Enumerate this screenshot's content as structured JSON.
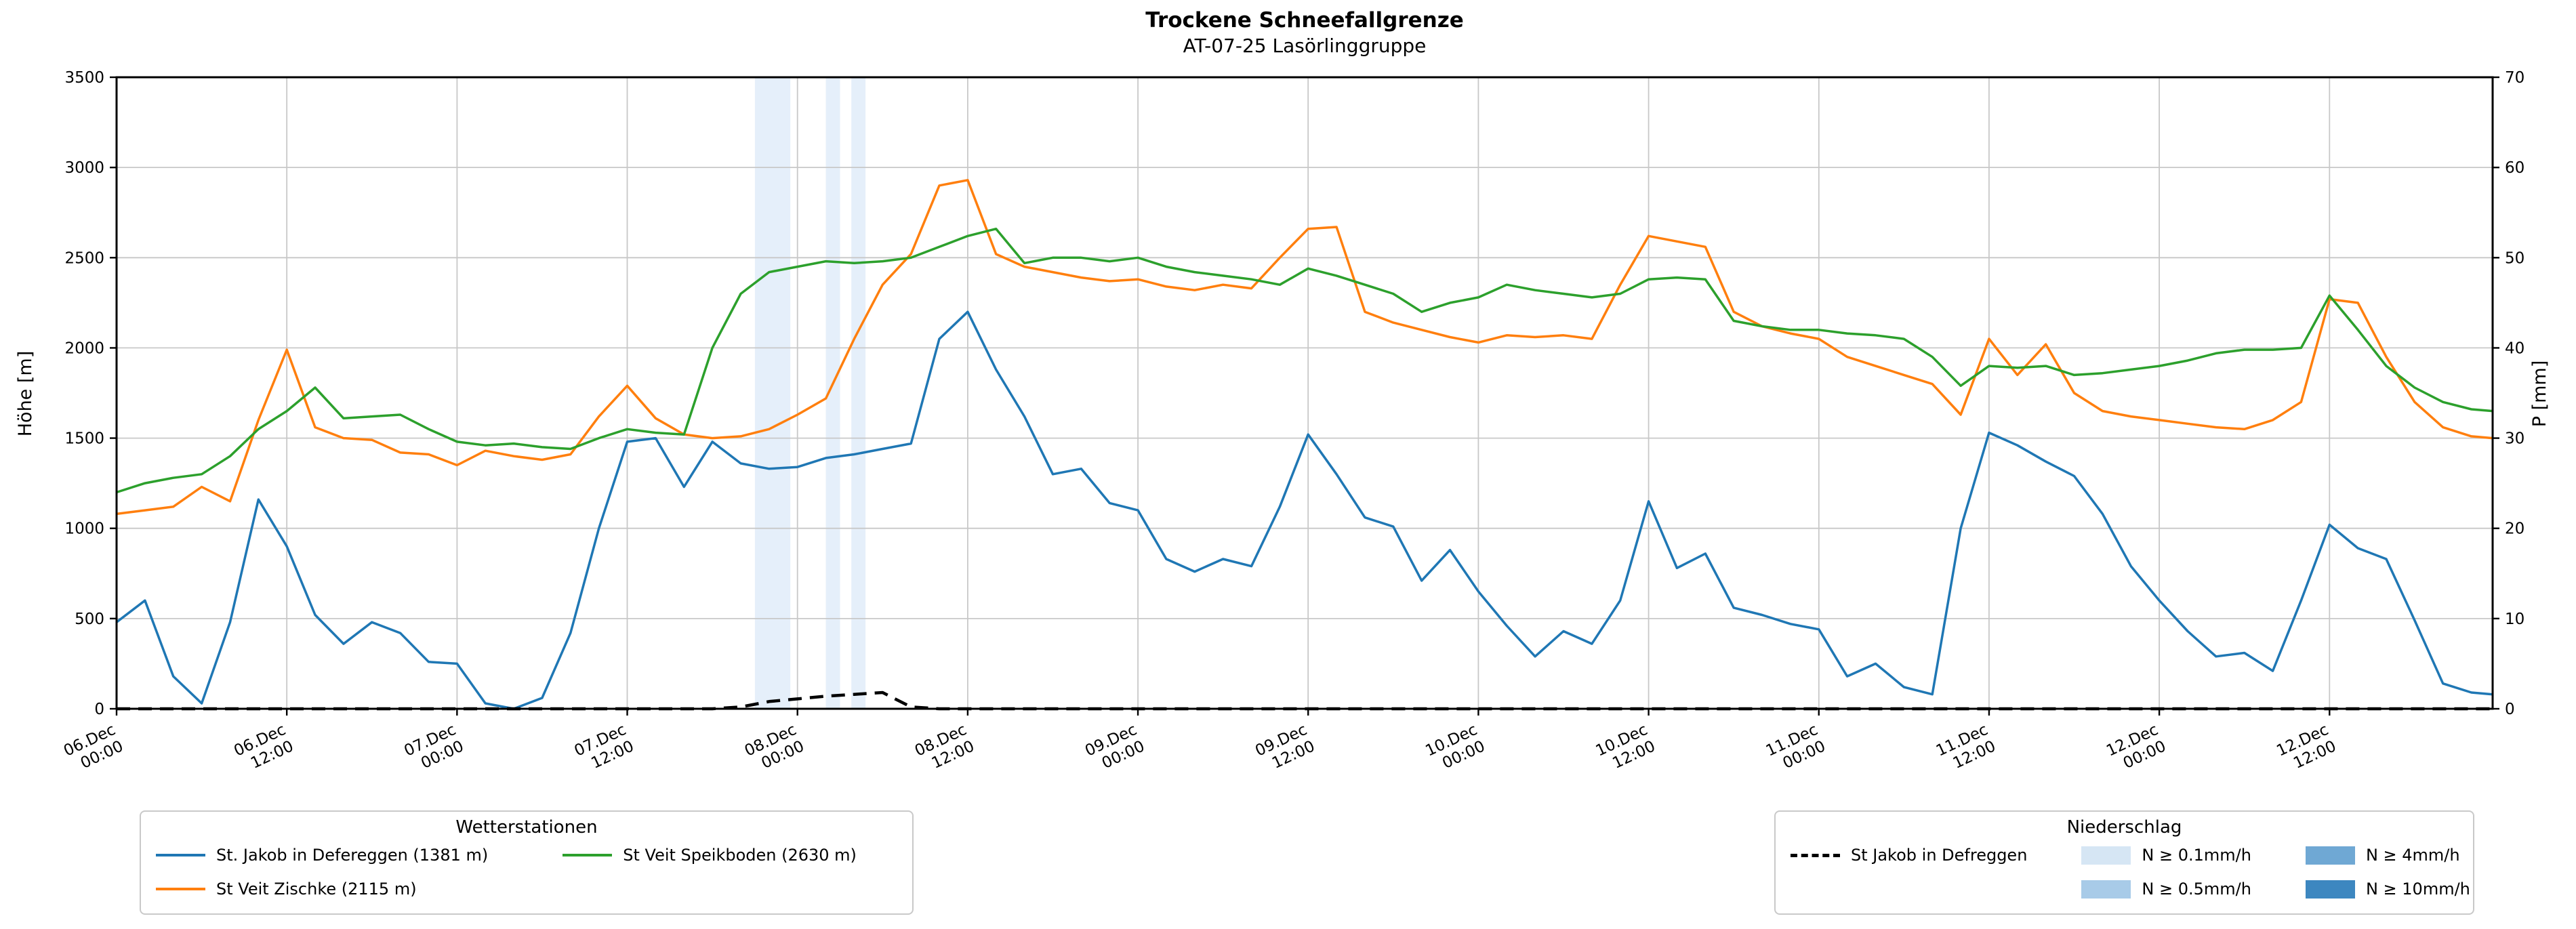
{
  "chart_data": {
    "type": "line",
    "title": "Trockene Schneefallgrenze",
    "subtitle": "AT-07-25 Lasörlinggruppe",
    "grid": true,
    "legend_position": "below",
    "band_color": "#ccdff5",
    "x_axis": {
      "unit": "hours since 06.Dec 00:00",
      "range": [
        0,
        167.5
      ],
      "ticks": [
        {
          "h": 0,
          "date": "06.Dec",
          "time": "00:00"
        },
        {
          "h": 12,
          "date": "06.Dec",
          "time": "12:00"
        },
        {
          "h": 24,
          "date": "07.Dec",
          "time": "00:00"
        },
        {
          "h": 36,
          "date": "07.Dec",
          "time": "12:00"
        },
        {
          "h": 48,
          "date": "08.Dec",
          "time": "00:00"
        },
        {
          "h": 60,
          "date": "08.Dec",
          "time": "12:00"
        },
        {
          "h": 72,
          "date": "09.Dec",
          "time": "00:00"
        },
        {
          "h": 84,
          "date": "09.Dec",
          "time": "12:00"
        },
        {
          "h": 96,
          "date": "10.Dec",
          "time": "00:00"
        },
        {
          "h": 108,
          "date": "10.Dec",
          "time": "12:00"
        },
        {
          "h": 120,
          "date": "11.Dec",
          "time": "00:00"
        },
        {
          "h": 132,
          "date": "11.Dec",
          "time": "12:00"
        },
        {
          "h": 144,
          "date": "12.Dec",
          "time": "00:00"
        },
        {
          "h": 156,
          "date": "12.Dec",
          "time": "12:00"
        }
      ]
    },
    "y_left": {
      "label": "Höhe [m]",
      "range": [
        0,
        3500
      ],
      "ticks": [
        0,
        500,
        1000,
        1500,
        2000,
        2500,
        3000,
        3500
      ]
    },
    "y_right": {
      "label": "P [mm]",
      "range": [
        0,
        70
      ],
      "ticks": [
        0,
        10,
        20,
        30,
        40,
        50,
        60,
        70
      ]
    },
    "x_hours": [
      0,
      2,
      4,
      6,
      8,
      10,
      12,
      14,
      16,
      18,
      20,
      22,
      24,
      26,
      28,
      30,
      32,
      34,
      36,
      38,
      40,
      42,
      44,
      46,
      48,
      50,
      52,
      54,
      56,
      58,
      60,
      62,
      64,
      66,
      68,
      70,
      72,
      74,
      76,
      78,
      80,
      82,
      84,
      86,
      88,
      90,
      92,
      94,
      96,
      98,
      100,
      102,
      104,
      106,
      108,
      110,
      112,
      114,
      116,
      118,
      120,
      122,
      124,
      126,
      128,
      130,
      132,
      134,
      136,
      138,
      140,
      142,
      144,
      146,
      148,
      150,
      152,
      154,
      156,
      158,
      160,
      162,
      164,
      166,
      167.5
    ],
    "series": [
      {
        "id": "st-jakob-defereggen",
        "name": "St. Jakob in Defereggen (1381 m)",
        "axis": "left",
        "color": "#1f77b4",
        "style": "solid",
        "values": [
          480,
          600,
          180,
          30,
          480,
          1160,
          900,
          520,
          360,
          480,
          420,
          260,
          250,
          30,
          0,
          60,
          420,
          1000,
          1480,
          1500,
          1230,
          1480,
          1360,
          1330,
          1340,
          1390,
          1410,
          1440,
          1470,
          2050,
          2200,
          1880,
          1620,
          1300,
          1330,
          1140,
          1100,
          830,
          760,
          830,
          790,
          1120,
          1520,
          1300,
          1060,
          1010,
          710,
          880,
          650,
          460,
          290,
          430,
          360,
          600,
          1150,
          780,
          860,
          560,
          520,
          470,
          440,
          180,
          250,
          120,
          80,
          1000,
          1530,
          1460,
          1370,
          1290,
          1080,
          790,
          600,
          430,
          290,
          310,
          210,
          600,
          1020,
          890,
          830,
          490,
          140,
          90,
          80
        ]
      },
      {
        "id": "st-veit-zischke",
        "name": "St Veit Zischke (2115 m)",
        "axis": "left",
        "color": "#ff7f0e",
        "style": "solid",
        "values": [
          1080,
          1100,
          1120,
          1230,
          1150,
          1600,
          1990,
          1560,
          1500,
          1490,
          1420,
          1410,
          1350,
          1430,
          1400,
          1380,
          1410,
          1620,
          1790,
          1610,
          1520,
          1500,
          1510,
          1550,
          1630,
          1720,
          2050,
          2350,
          2520,
          2900,
          2930,
          2520,
          2450,
          2420,
          2390,
          2370,
          2380,
          2340,
          2320,
          2350,
          2330,
          2500,
          2660,
          2670,
          2200,
          2140,
          2100,
          2060,
          2030,
          2070,
          2060,
          2070,
          2050,
          2350,
          2620,
          2590,
          2560,
          2200,
          2120,
          2080,
          2050,
          1950,
          1900,
          1850,
          1800,
          1630,
          2050,
          1850,
          2020,
          1750,
          1650,
          1620,
          1600,
          1580,
          1560,
          1550,
          1600,
          1700,
          2270,
          2250,
          1950,
          1700,
          1560,
          1510,
          1500
        ]
      },
      {
        "id": "st-veit-speikboden",
        "name": "St Veit Speikboden (2630 m)",
        "axis": "left",
        "color": "#2ca02c",
        "style": "solid",
        "values": [
          1200,
          1250,
          1280,
          1300,
          1400,
          1550,
          1650,
          1780,
          1610,
          1620,
          1630,
          1550,
          1480,
          1460,
          1470,
          1450,
          1440,
          1500,
          1550,
          1530,
          1520,
          2000,
          2300,
          2420,
          2450,
          2480,
          2470,
          2480,
          2500,
          2560,
          2620,
          2660,
          2470,
          2500,
          2500,
          2480,
          2500,
          2450,
          2420,
          2400,
          2380,
          2350,
          2440,
          2400,
          2350,
          2300,
          2200,
          2250,
          2280,
          2350,
          2320,
          2300,
          2280,
          2300,
          2380,
          2390,
          2380,
          2150,
          2120,
          2100,
          2100,
          2080,
          2070,
          2050,
          1950,
          1790,
          1900,
          1890,
          1900,
          1850,
          1860,
          1880,
          1900,
          1930,
          1970,
          1990,
          1990,
          2000,
          2290,
          2100,
          1900,
          1780,
          1700,
          1660,
          1650
        ]
      },
      {
        "id": "precip-st-jakob",
        "name": "St Jakob in Defreggen",
        "axis": "right",
        "color": "#000000",
        "style": "dashed",
        "values": [
          0,
          0,
          0,
          0,
          0,
          0,
          0,
          0,
          0,
          0,
          0,
          0,
          0,
          0,
          0,
          0,
          0,
          0,
          0,
          0,
          0,
          0,
          0.2,
          0.8,
          1.1,
          1.4,
          1.6,
          1.8,
          0.2,
          0,
          0,
          0,
          0,
          0,
          0,
          0,
          0,
          0,
          0,
          0,
          0,
          0,
          0,
          0,
          0,
          0,
          0,
          0,
          0,
          0,
          0,
          0,
          0,
          0,
          0,
          0,
          0,
          0,
          0,
          0,
          0,
          0,
          0,
          0,
          0,
          0,
          0,
          0,
          0,
          0,
          0,
          0,
          0,
          0,
          0,
          0,
          0,
          0,
          0,
          0,
          0,
          0,
          0,
          0,
          0
        ]
      }
    ],
    "precip_bands": [
      {
        "start_h": 45,
        "end_h": 47.5,
        "level": "N ≥ 0.1mm/h"
      },
      {
        "start_h": 50,
        "end_h": 51,
        "level": "N ≥ 0.1mm/h"
      },
      {
        "start_h": 51.8,
        "end_h": 52.8,
        "level": "N ≥ 0.1mm/h"
      }
    ],
    "legends": {
      "stations": {
        "title": "Wetterstationen",
        "columns": [
          [
            {
              "label": "St. Jakob in Defereggen (1381 m)",
              "color": "#1f77b4"
            },
            {
              "label": "St Veit Zischke (2115 m)",
              "color": "#ff7f0e"
            }
          ],
          [
            {
              "label": "St Veit Speikboden (2630 m)",
              "color": "#2ca02c"
            }
          ]
        ]
      },
      "precip": {
        "title": "Niederschlag",
        "columns": [
          [
            {
              "label": "St Jakob in Defreggen",
              "color": "#000000",
              "dash": true
            }
          ],
          [
            {
              "label": "N ≥ 0.1mm/h",
              "patch": "#d6e6f4"
            },
            {
              "label": "N ≥ 0.5mm/h",
              "patch": "#a8cbe8"
            }
          ],
          [
            {
              "label": "N ≥ 4mm/h",
              "patch": "#6fa8d4"
            },
            {
              "label": "N ≥ 10mm/h",
              "patch": "#3d87c0"
            }
          ]
        ]
      }
    }
  }
}
